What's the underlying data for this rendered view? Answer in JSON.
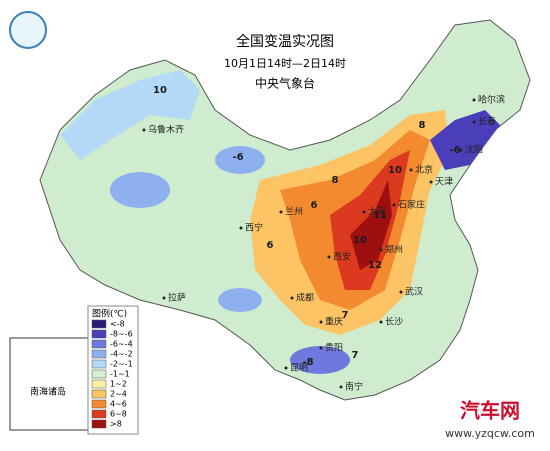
{
  "header": {
    "title": "全国变温实况图",
    "subtitle": "10月1日14时—2日14时",
    "agency": "中央气象台"
  },
  "legend": {
    "title": "图例(℃)",
    "items": [
      {
        "label": "<-8",
        "color": "#2b1a7a"
      },
      {
        "label": "-8~-6",
        "color": "#4a3fb8"
      },
      {
        "label": "-6~-4",
        "color": "#6f78dc"
      },
      {
        "label": "-4~-2",
        "color": "#8fb0ee"
      },
      {
        "label": "-2~-1",
        "color": "#b4d9f6"
      },
      {
        "label": "-1~1",
        "color": "#d6efd0"
      },
      {
        "label": "1~2",
        "color": "#fbf0a0"
      },
      {
        "label": "2~4",
        "color": "#fcc464"
      },
      {
        "label": "4~6",
        "color": "#f48a30"
      },
      {
        "label": "6~8",
        "color": "#dc3a1e"
      },
      {
        "label": ">8",
        "color": "#9e1010"
      }
    ]
  },
  "cities": [
    "乌鲁木齐",
    "拉萨",
    "西宁",
    "兰州",
    "西安",
    "成都",
    "重庆",
    "贵阳",
    "昆明",
    "南宁",
    "长沙",
    "武汉",
    "郑州",
    "石家庄",
    "太原",
    "北京",
    "天津",
    "沈阳",
    "长春",
    "哈尔滨"
  ],
  "values": [
    10,
    -6,
    6,
    8,
    10,
    11,
    12,
    10,
    8,
    -6,
    6,
    7,
    -8,
    7
  ],
  "inset": {
    "label": "南海诸岛"
  },
  "watermark": {
    "brand": "汽车网",
    "url": "www.yzqcw.com"
  }
}
